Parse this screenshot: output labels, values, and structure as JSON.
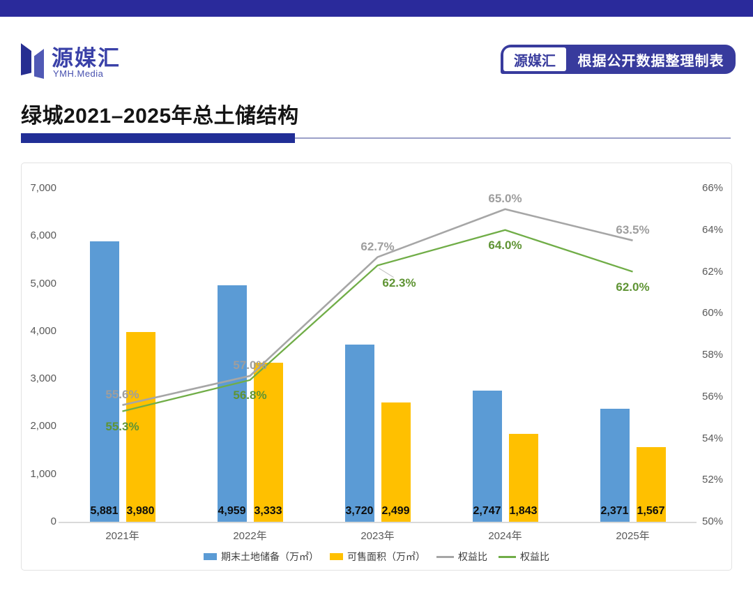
{
  "page": {
    "top_band_color": "#2A2A9B",
    "background": "#FFFFFF"
  },
  "header": {
    "logo": {
      "brand": "源媒汇",
      "sub": "YMH.Media"
    },
    "badge": {
      "left_label": "源媒汇",
      "right_label": "根据公开数据整理制表",
      "color": "#383B9D"
    }
  },
  "title": {
    "text": "绿城2021–2025年总土储结构"
  },
  "chart_data": {
    "type": "combo_bar_line",
    "categories": [
      "2021年",
      "2022年",
      "2023年",
      "2024年",
      "2025年"
    ],
    "bar_series": [
      {
        "name": "期末土地储备（万㎡）",
        "color": "#5B9BD5",
        "values": [
          5881,
          4959,
          3720,
          2747,
          2371
        ],
        "value_labels": [
          "5,881",
          "4,959",
          "3,720",
          "2,747",
          "2,371"
        ]
      },
      {
        "name": "可售面积（万㎡）",
        "color": "#FFC000",
        "values": [
          3980,
          3333,
          2499,
          1843,
          1567
        ],
        "value_labels": [
          "3,980",
          "3,333",
          "2,499",
          "1,843",
          "1,567"
        ]
      }
    ],
    "line_series": [
      {
        "name": "权益比",
        "color": "#A6A6A6",
        "label_color": "#9E9E9E",
        "values": [
          55.6,
          57.0,
          62.7,
          65.0,
          63.5
        ],
        "point_labels": [
          "55.6%",
          "57.0%",
          "62.7%",
          "65.0%",
          "63.5%"
        ],
        "label_side": "above"
      },
      {
        "name": "权益比",
        "color": "#70AD47",
        "label_color": "#5F9434",
        "values": [
          55.3,
          56.8,
          62.3,
          64.0,
          62.0
        ],
        "point_labels": [
          "55.3%",
          "56.8%",
          "62.3%",
          "64.0%",
          "62.0%"
        ],
        "label_side": "below"
      }
    ],
    "left_axis": {
      "min": 0,
      "max": 7000,
      "step": 1000,
      "tick_labels": [
        "0",
        "1,000",
        "2,000",
        "3,000",
        "4,000",
        "5,000",
        "6,000",
        "7,000"
      ]
    },
    "right_axis": {
      "min": 50,
      "max": 66,
      "step": 2,
      "tick_labels": [
        "50%",
        "52%",
        "54%",
        "56%",
        "58%",
        "60%",
        "62%",
        "64%",
        "66%"
      ]
    },
    "grid": false,
    "legend_position": "bottom"
  }
}
